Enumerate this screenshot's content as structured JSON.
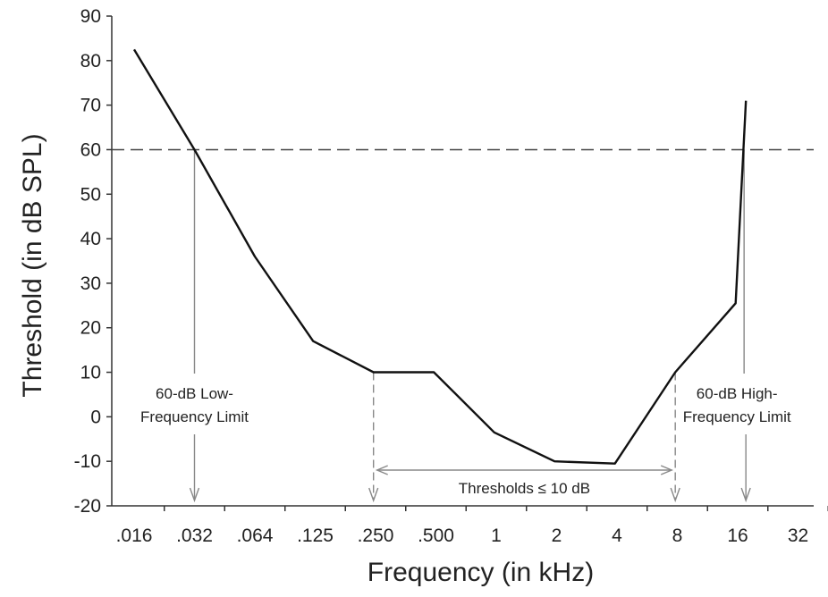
{
  "chart_data": {
    "type": "line",
    "xlabel": "Frequency (in kHz)",
    "ylabel": "Threshold (in dB SPL)",
    "x_scale": "log2",
    "x_ticks": [
      ".016",
      ".032",
      ".064",
      ".125",
      ".250",
      ".500",
      "1",
      "2",
      "4",
      "8",
      "16",
      "32"
    ],
    "y_ticks": [
      "-20",
      "-10",
      "0",
      "10",
      "20",
      "30",
      "40",
      "50",
      "60",
      "70",
      "80",
      "90"
    ],
    "xlim_khz": [
      0.016,
      32
    ],
    "ylim": [
      -20,
      90
    ],
    "grid": false,
    "series": [
      {
        "x_khz": [
          0.016,
          0.032,
          0.064,
          0.125,
          0.25,
          0.5,
          1,
          2,
          4,
          8,
          16,
          18
        ],
        "y": [
          82.5,
          60,
          36,
          17,
          10,
          10,
          -3.5,
          -10,
          -10.5,
          10,
          25.5,
          71
        ],
        "color": "#111111"
      }
    ],
    "reference_line": {
      "y": 60,
      "style": "dashed"
    },
    "annotations": {
      "low_limit": {
        "lines": [
          "60-dB Low-",
          "Frequency Limit"
        ],
        "x_khz": 0.032
      },
      "high_limit": {
        "lines": [
          "60-dB High-",
          "Frequency Limit"
        ],
        "x_khz": 18
      },
      "range": {
        "label": "Thresholds ≤ 10 dB",
        "x_from_khz": 0.25,
        "x_to_khz": 8
      }
    }
  }
}
